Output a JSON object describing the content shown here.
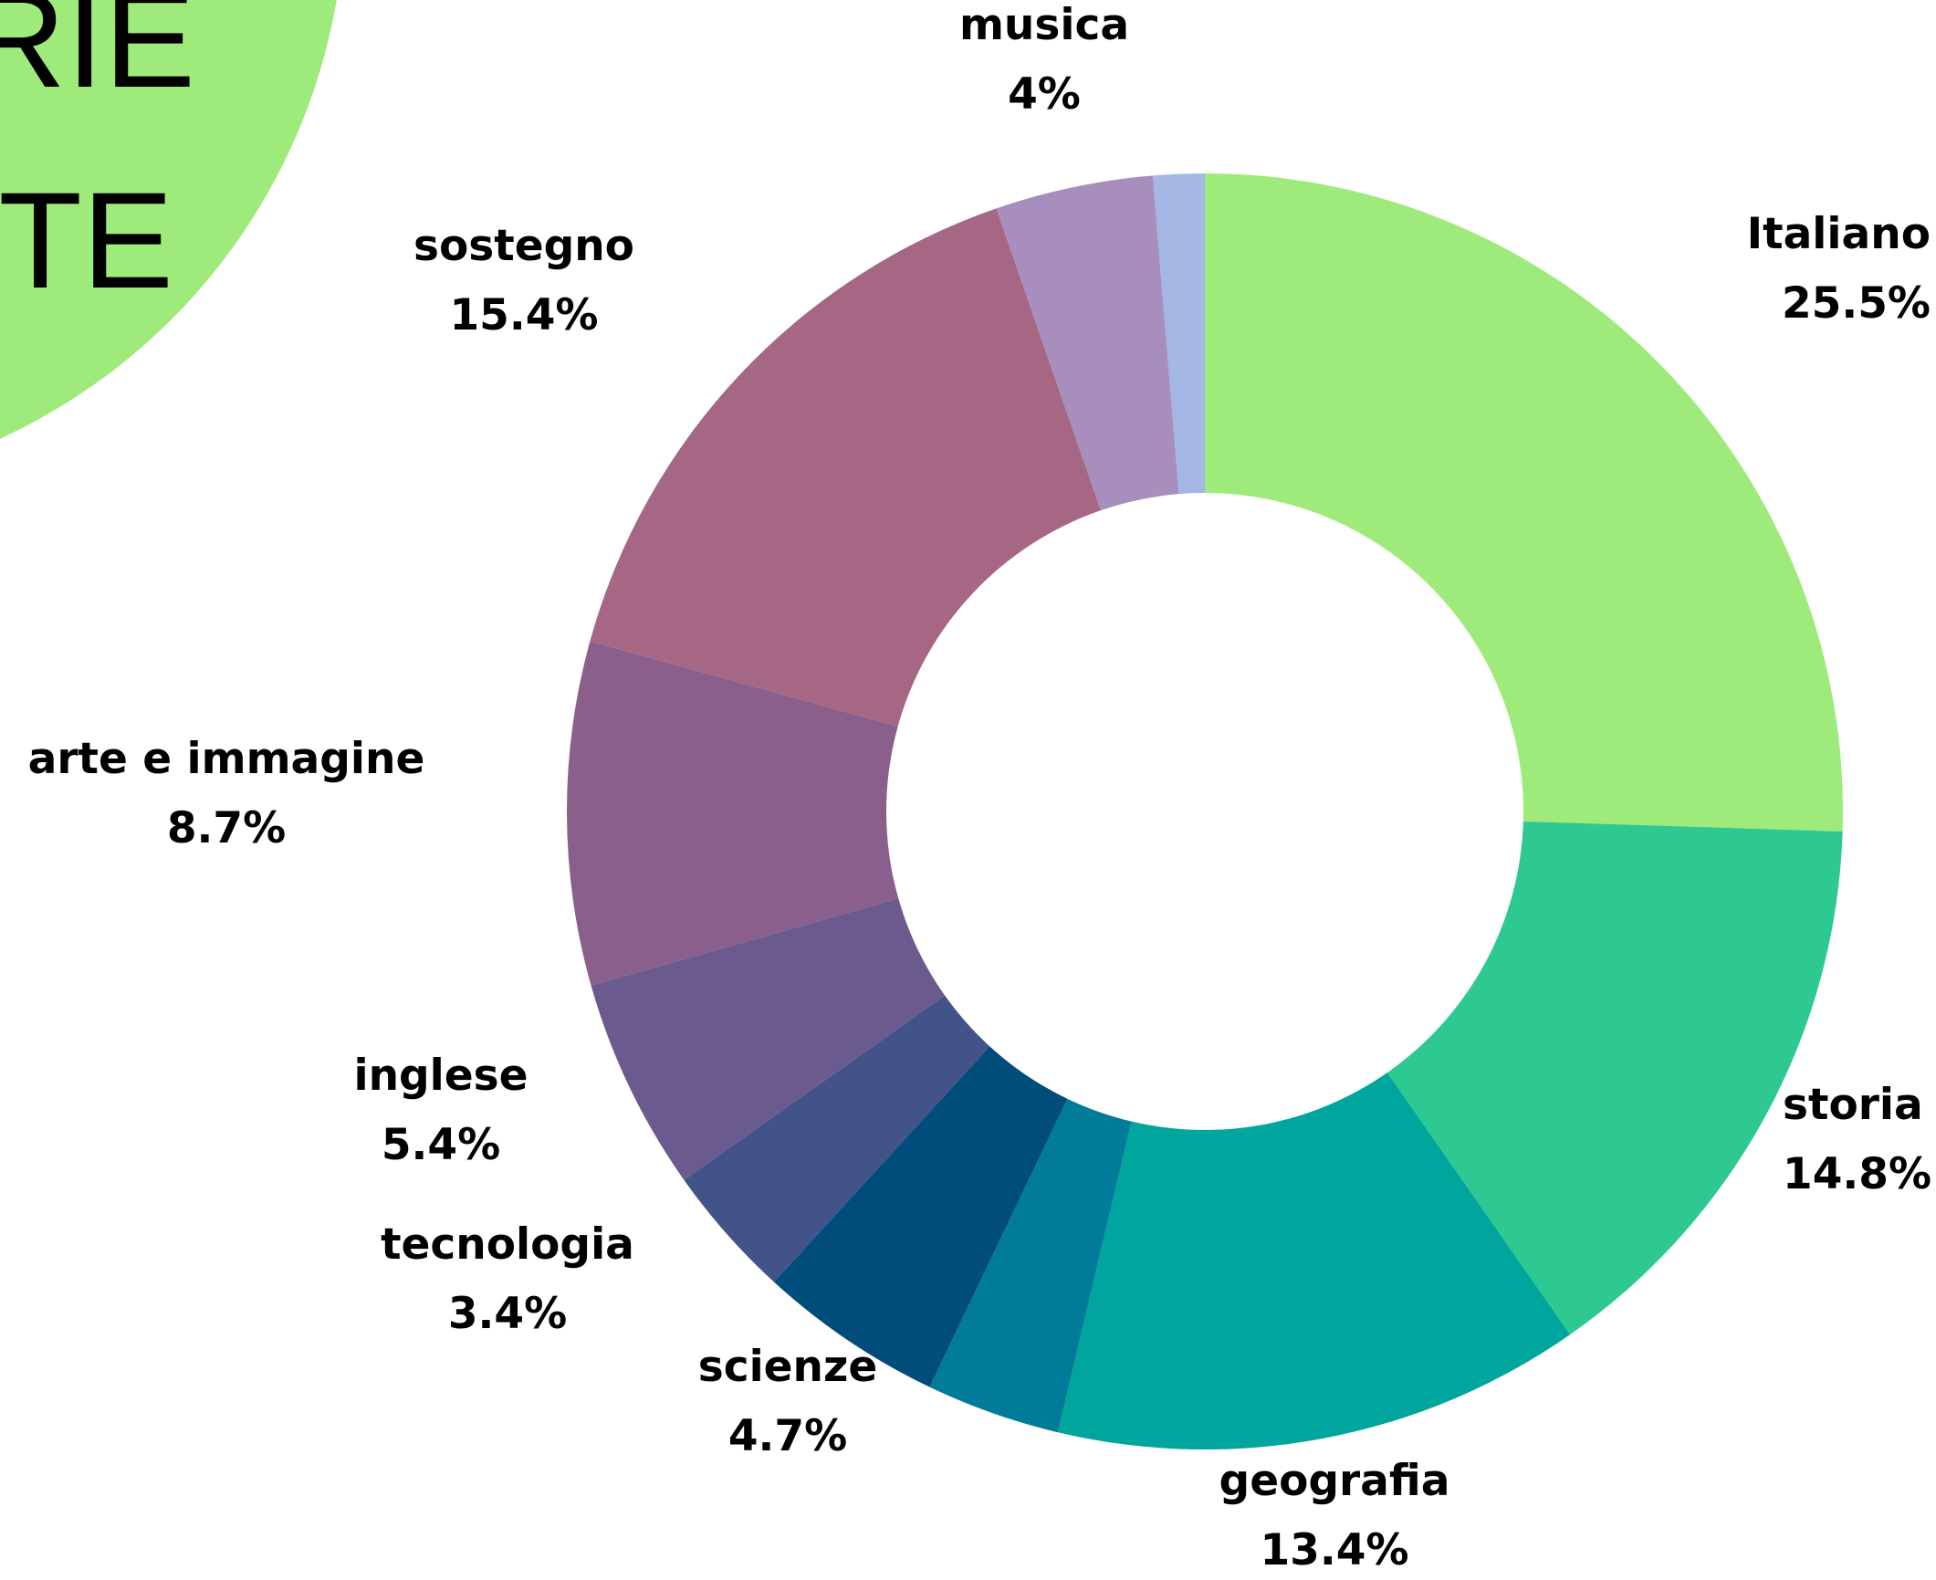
{
  "header": {
    "lines": [
      "RIE",
      "TE"
    ]
  },
  "chart_data": {
    "type": "donut",
    "categories": [
      "Italiano",
      "storia",
      "geografia",
      null,
      "scienze",
      "tecnologia",
      "inglese",
      "arte e immagine",
      "sostegno",
      "musica",
      null
    ],
    "values": [
      25.5,
      14.8,
      13.4,
      3.4,
      4.7,
      3.4,
      5.4,
      8.7,
      15.4,
      4,
      1.3
    ],
    "value_labels": [
      "25.5%",
      "14.8%",
      "13.4%",
      null,
      "4.7%",
      "3.4%",
      "5.4%",
      "8.7%",
      "15.4%",
      "4%",
      null
    ],
    "colors": [
      "#9eea7a",
      "#2ec990",
      "#00a59d",
      "#007b9a",
      "#004c7a",
      "#415389",
      "#6b5a8e",
      "#8b5f8c",
      "#a66785",
      "#a78ebc",
      "#a4b6e4"
    ]
  }
}
